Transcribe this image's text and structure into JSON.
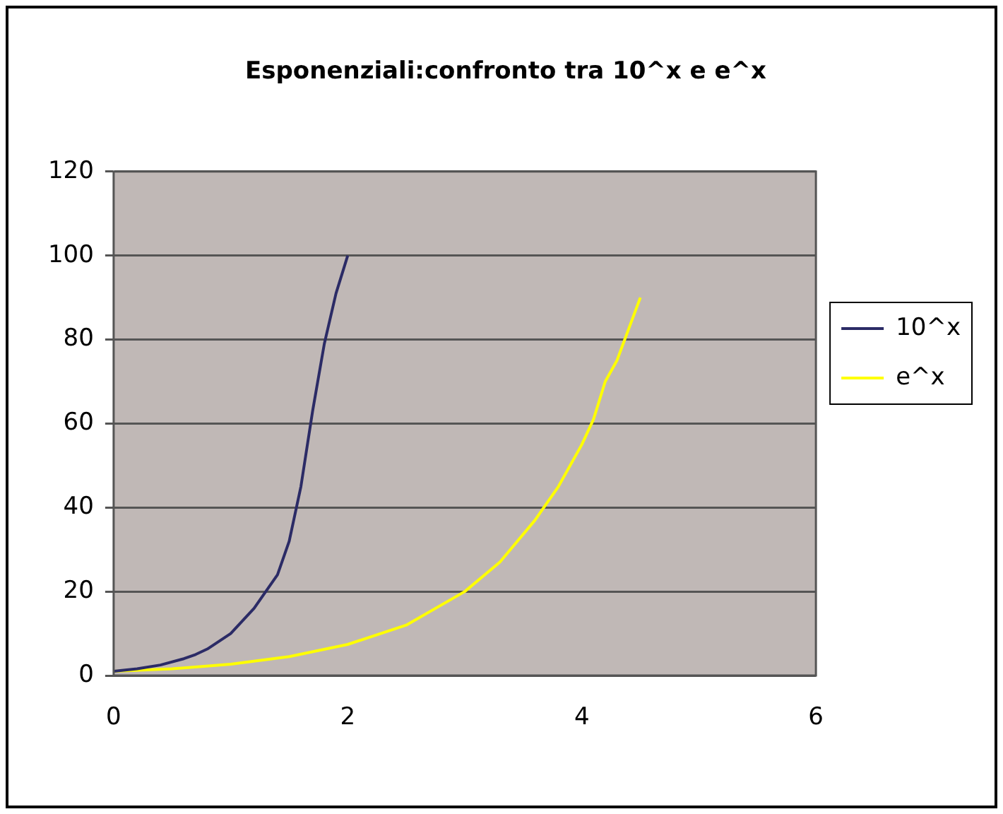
{
  "chart_data": {
    "type": "line",
    "title": "Esponenziali:confronto tra 10^x e e^x",
    "series": [
      {
        "name": "10^x",
        "color": "#2b2b66",
        "x": [
          0,
          0.2,
          0.4,
          0.6,
          0.7,
          0.8,
          1.0,
          1.2,
          1.4,
          1.5,
          1.6,
          1.7,
          1.8,
          1.9,
          2.0
        ],
        "values": [
          1,
          1.6,
          2.5,
          4,
          5,
          6.3,
          10,
          16,
          24,
          32,
          45,
          63,
          79,
          91,
          100
        ]
      },
      {
        "name": "e^x",
        "color": "#ffff00",
        "x": [
          0,
          0.5,
          1,
          1.5,
          2,
          2.5,
          3,
          3.3,
          3.6,
          3.8,
          4,
          4.1,
          4.2,
          4.3,
          4.5
        ],
        "values": [
          1,
          1.6,
          2.7,
          4.5,
          7.4,
          12,
          20,
          27,
          37,
          45,
          55,
          61,
          70,
          75,
          90
        ]
      }
    ],
    "xlim": [
      0,
      6
    ],
    "xticks": [
      0,
      2,
      4,
      6
    ],
    "ylim": [
      0,
      120
    ],
    "yticks": [
      0,
      20,
      40,
      60,
      80,
      100,
      120
    ],
    "grid": "y",
    "legend": "right",
    "marker": "none",
    "line_style": "solid"
  }
}
